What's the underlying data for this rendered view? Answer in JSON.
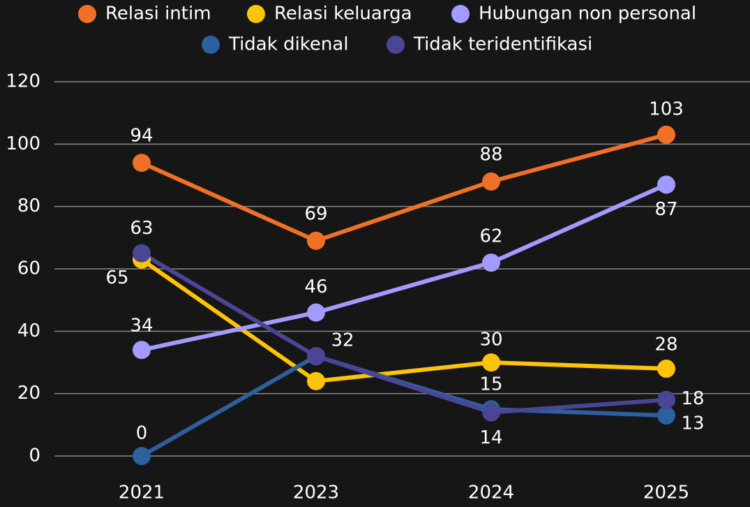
{
  "chart_data": {
    "type": "line",
    "categories": [
      "2021",
      "2023",
      "2024",
      "2025"
    ],
    "series": [
      {
        "name": "Relasi intim",
        "color": "#f07028",
        "values": [
          94,
          69,
          88,
          103
        ]
      },
      {
        "name": "Relasi keluarga",
        "color": "#fcc30b",
        "values": [
          63,
          24,
          30,
          28
        ],
        "value_labels": [
          63,
          null,
          30,
          28
        ]
      },
      {
        "name": "Hubungan non personal",
        "color": "#a29bfe",
        "values": [
          34,
          46,
          62,
          87
        ]
      },
      {
        "name": "Tidak dikenal",
        "color": "#2e5f9e",
        "values": [
          0,
          32,
          15,
          13
        ]
      },
      {
        "name": "Tidak teridentifikasi",
        "color": "#4b4596",
        "values": [
          65,
          32,
          14,
          18
        ],
        "value_labels": [
          65,
          null,
          14,
          18
        ]
      }
    ],
    "ylim": [
      0,
      120
    ],
    "yticks": [
      0,
      20,
      40,
      60,
      80,
      100,
      120
    ],
    "grid": true,
    "legend": "top"
  }
}
